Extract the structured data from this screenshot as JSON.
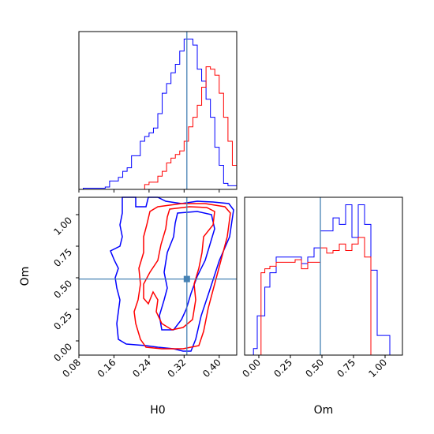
{
  "chart_data": {
    "type": "corner",
    "parameters": [
      "H0",
      "Om"
    ],
    "truth": {
      "H0": 0.335,
      "Om": 0.48
    },
    "colors": {
      "blue": "#0000ff",
      "red": "#ff0000",
      "truth": "#4682b4"
    },
    "panels": [
      {
        "id": "hist-H0",
        "type": "histogram-step",
        "xlim": [
          0.08,
          0.44
        ],
        "bins": [
          0.09,
          0.1,
          0.11,
          0.12,
          0.13,
          0.14,
          0.15,
          0.16,
          0.17,
          0.18,
          0.19,
          0.2,
          0.21,
          0.22,
          0.23,
          0.24,
          0.25,
          0.26,
          0.27,
          0.28,
          0.29,
          0.3,
          0.31,
          0.32,
          0.33,
          0.34,
          0.35,
          0.36,
          0.37,
          0.38,
          0.39,
          0.4,
          0.41,
          0.42,
          0.43,
          0.44
        ],
        "series": [
          {
            "name": "blue",
            "color": "#0000ff",
            "values": [
              1,
              1,
              1,
              1,
              1,
              2,
              7,
              7,
              10,
              15,
              18,
              28,
              28,
              40,
              44,
              47,
              51,
              63,
              80,
              88,
              97,
              104,
              115,
              125,
              125,
              120,
              100,
              90,
              75,
              60,
              35,
              20,
              5,
              3,
              3
            ]
          },
          {
            "name": "red",
            "color": "#ff0000",
            "values": [
              0,
              0,
              0,
              0,
              0,
              0,
              0,
              0,
              0,
              0,
              0,
              0,
              0,
              0,
              4,
              6,
              6,
              11,
              15,
              22,
              26,
              29,
              32,
              40,
              52,
              60,
              70,
              85,
              102,
              100,
              95,
              80,
              60,
              40,
              20
            ]
          }
        ]
      },
      {
        "id": "contour-H0-Om",
        "type": "contour",
        "xlim": [
          0.08,
          0.44
        ],
        "ylim": [
          -0.1,
          1.15
        ],
        "xticks": [
          "0.08",
          "0.16",
          "0.24",
          "0.32",
          "0.40"
        ],
        "yticks": [
          "0.00",
          "0.25",
          "0.50",
          "0.75",
          "1.00"
        ],
        "series": [
          {
            "name": "blue",
            "color": "#0000ff",
            "levels": [
              "outer",
              "inner"
            ]
          },
          {
            "name": "red",
            "color": "#ff0000",
            "levels": [
              "outer",
              "inner"
            ]
          }
        ]
      },
      {
        "id": "hist-Om",
        "type": "histogram-step",
        "xlim": [
          -0.1,
          1.15
        ],
        "xticks": [
          "0.00",
          "0.25",
          "0.50",
          "0.75",
          "1.00"
        ],
        "bins": [
          -0.03,
          0.0,
          0.03,
          0.06,
          0.1,
          0.15,
          0.2,
          0.25,
          0.3,
          0.35,
          0.4,
          0.45,
          0.5,
          0.55,
          0.6,
          0.65,
          0.7,
          0.75,
          0.8,
          0.85,
          0.9,
          0.95,
          1.0,
          1.05
        ],
        "series": [
          {
            "name": "blue",
            "color": "#0000ff",
            "values": [
              5,
              30,
              30,
              52,
              63,
              75,
              75,
              75,
              75,
              70,
              75,
              82,
              95,
              95,
              105,
              100,
              115,
              90,
              115,
              100,
              65,
              15,
              15
            ]
          },
          {
            "name": "red",
            "color": "#ff0000",
            "values": [
              0,
              0,
              63,
              66,
              68,
              71,
              71,
              71,
              73,
              66,
              71,
              71,
              82,
              78,
              80,
              85,
              80,
              85,
              90,
              75,
              0,
              0,
              0
            ]
          }
        ]
      }
    ],
    "xlabels": [
      "H0",
      "Om"
    ],
    "ylabel": "Om"
  }
}
